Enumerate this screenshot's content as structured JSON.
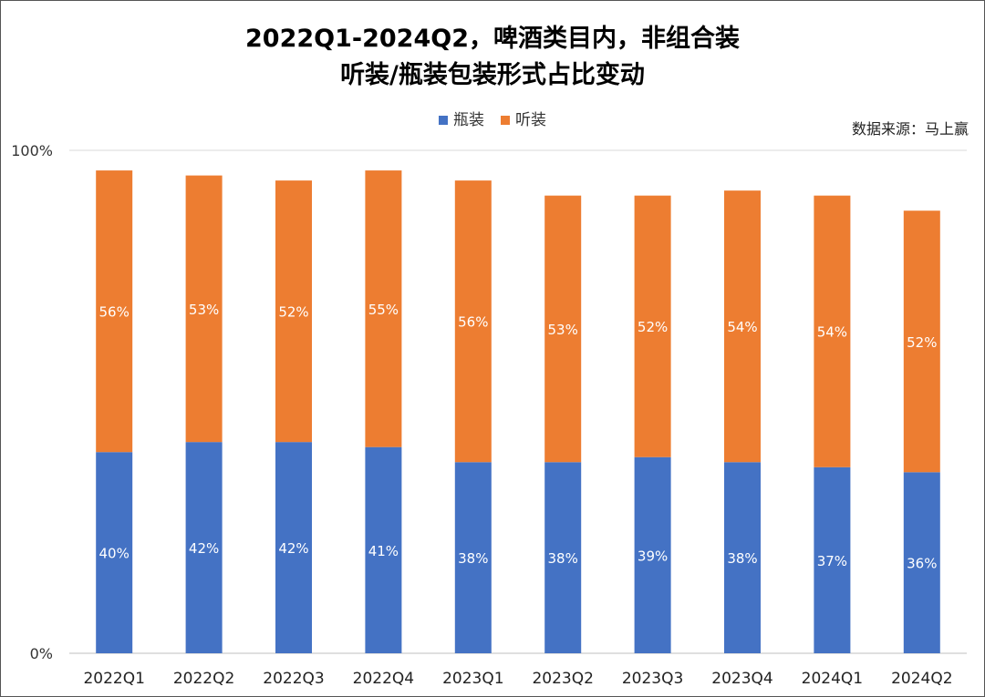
{
  "chart_data": {
    "type": "bar",
    "stacked": true,
    "title": [
      "2022Q1-2024Q2，啤酒类目内，非组合装",
      "听装/瓶装包装形式占比变动"
    ],
    "source": "数据来源：马上赢",
    "categories": [
      "2022Q1",
      "2022Q2",
      "2022Q3",
      "2022Q4",
      "2023Q1",
      "2023Q2",
      "2023Q3",
      "2023Q4",
      "2024Q1",
      "2024Q2"
    ],
    "series": [
      {
        "name": "瓶装",
        "color": "#4472C4",
        "values": [
          40,
          42,
          42,
          41,
          38,
          38,
          39,
          38,
          37,
          36
        ]
      },
      {
        "name": "听装",
        "color": "#ED7D31",
        "values": [
          56,
          53,
          52,
          55,
          56,
          53,
          52,
          54,
          54,
          52
        ]
      }
    ],
    "ylim": [
      0,
      100
    ],
    "yticks": [
      "0%",
      "100%"
    ],
    "legend_position": "top-center",
    "grid": false
  }
}
